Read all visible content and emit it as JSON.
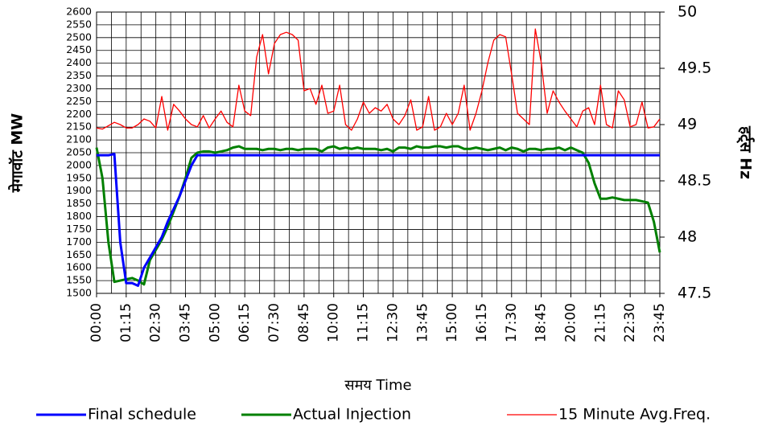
{
  "chart_data": {
    "type": "line",
    "ylabel": "मेगावॉट  MW",
    "y2label": "हर्ट्स  Hz",
    "xlabel": "समय   Time",
    "categories": [
      "00:00",
      null,
      null,
      null,
      null,
      "01:15",
      null,
      null,
      null,
      null,
      "02:30",
      null,
      null,
      null,
      null,
      "03:45",
      null,
      null,
      null,
      null,
      "05:00",
      null,
      null,
      null,
      null,
      "06:15",
      null,
      null,
      null,
      null,
      "07:30",
      null,
      null,
      null,
      null,
      "08:45",
      null,
      null,
      null,
      null,
      "10:00",
      null,
      null,
      null,
      null,
      "11:15",
      null,
      null,
      null,
      null,
      "12:30",
      null,
      null,
      null,
      null,
      "13:45",
      null,
      null,
      null,
      null,
      "15:00",
      null,
      null,
      null,
      null,
      "16:15",
      null,
      null,
      null,
      null,
      "17:30",
      null,
      null,
      null,
      null,
      "18:45",
      null,
      null,
      null,
      null,
      "20:00",
      null,
      null,
      null,
      null,
      "21:15",
      null,
      null,
      null,
      null,
      "22:30",
      null,
      null,
      null,
      null,
      "23:45"
    ],
    "series": [
      {
        "name": "Final schedule",
        "color": "#0000ff",
        "width": 3,
        "values": [
          2040,
          2040,
          2040,
          2045,
          1700,
          1540,
          1540,
          1530,
          1600,
          1640,
          1680,
          1720,
          1780,
          1830,
          1880,
          1940,
          2000,
          2040,
          2040,
          2040,
          2040,
          2040,
          2040,
          2040,
          2040,
          2040,
          2040,
          2040,
          2040,
          2040,
          2040,
          2040,
          2040,
          2040,
          2040,
          2040,
          2040,
          2040,
          2040,
          2040,
          2040,
          2040,
          2040,
          2040,
          2040,
          2040,
          2040,
          2040,
          2040,
          2040,
          2040,
          2040,
          2040,
          2040,
          2040,
          2040,
          2040,
          2040,
          2040,
          2040,
          2040,
          2040,
          2040,
          2040,
          2040,
          2040,
          2040,
          2040,
          2040,
          2040,
          2040,
          2040,
          2040,
          2040,
          2040,
          2040,
          2040,
          2040,
          2040,
          2040,
          2040,
          2040,
          2040,
          2040,
          2040,
          2040,
          2040,
          2040,
          2040,
          2040,
          2040,
          2040,
          2040,
          2040,
          2040,
          2040
        ]
      },
      {
        "name": "Actual Injection",
        "color": "#008000",
        "width": 3,
        "values": [
          2070,
          1950,
          1700,
          1545,
          1550,
          1555,
          1560,
          1550,
          1535,
          1630,
          1670,
          1710,
          1760,
          1820,
          1880,
          1950,
          2030,
          2050,
          2055,
          2055,
          2050,
          2055,
          2060,
          2070,
          2075,
          2065,
          2065,
          2065,
          2060,
          2065,
          2065,
          2060,
          2065,
          2065,
          2060,
          2065,
          2065,
          2065,
          2055,
          2070,
          2075,
          2065,
          2070,
          2065,
          2070,
          2065,
          2065,
          2065,
          2060,
          2065,
          2055,
          2070,
          2070,
          2065,
          2075,
          2070,
          2070,
          2075,
          2075,
          2070,
          2075,
          2075,
          2065,
          2065,
          2070,
          2065,
          2060,
          2065,
          2070,
          2060,
          2070,
          2065,
          2055,
          2065,
          2065,
          2060,
          2065,
          2065,
          2070,
          2060,
          2070,
          2060,
          2050,
          2010,
          1930,
          1870,
          1870,
          1875,
          1870,
          1865,
          1865,
          1865,
          1860,
          1855,
          1780,
          1660
        ]
      },
      {
        "name": "15 Minute Avg.Freq.",
        "color": "#ff0000",
        "width": 1.3,
        "axis": "y2",
        "values": [
          48.97,
          48.96,
          48.99,
          49.02,
          49.0,
          48.97,
          48.97,
          49.0,
          49.05,
          49.03,
          48.97,
          49.25,
          48.95,
          49.18,
          49.12,
          49.05,
          49.0,
          48.98,
          49.08,
          48.97,
          49.05,
          49.12,
          49.02,
          48.98,
          49.35,
          49.12,
          49.08,
          49.6,
          49.8,
          49.45,
          49.72,
          49.8,
          49.82,
          49.8,
          49.75,
          49.3,
          49.32,
          49.18,
          49.35,
          49.1,
          49.12,
          49.35,
          49.0,
          48.95,
          49.05,
          49.2,
          49.1,
          49.15,
          49.12,
          49.18,
          49.05,
          49.0,
          49.08,
          49.22,
          48.95,
          48.98,
          49.25,
          48.95,
          48.98,
          49.1,
          49.0,
          49.1,
          49.35,
          48.95,
          49.1,
          49.3,
          49.55,
          49.75,
          49.8,
          49.78,
          49.45,
          49.1,
          49.05,
          49.0,
          49.85,
          49.55,
          49.1,
          49.3,
          49.2,
          49.12,
          49.05,
          48.98,
          49.12,
          49.15,
          49.0,
          49.35,
          49.0,
          48.97,
          49.3,
          49.22,
          48.98,
          49.0,
          49.2,
          48.97,
          48.98,
          49.05
        ]
      }
    ],
    "ylim": [
      1500,
      2600
    ],
    "yticks": [
      1500,
      1550,
      1600,
      1650,
      1700,
      1750,
      1800,
      1850,
      1900,
      1950,
      2000,
      2050,
      2100,
      2150,
      2200,
      2250,
      2300,
      2350,
      2400,
      2450,
      2500,
      2550,
      2600
    ],
    "y2lim": [
      47.5,
      50
    ],
    "y2ticks": [
      47.5,
      48,
      48.5,
      49,
      49.5,
      50
    ],
    "grid": true
  }
}
